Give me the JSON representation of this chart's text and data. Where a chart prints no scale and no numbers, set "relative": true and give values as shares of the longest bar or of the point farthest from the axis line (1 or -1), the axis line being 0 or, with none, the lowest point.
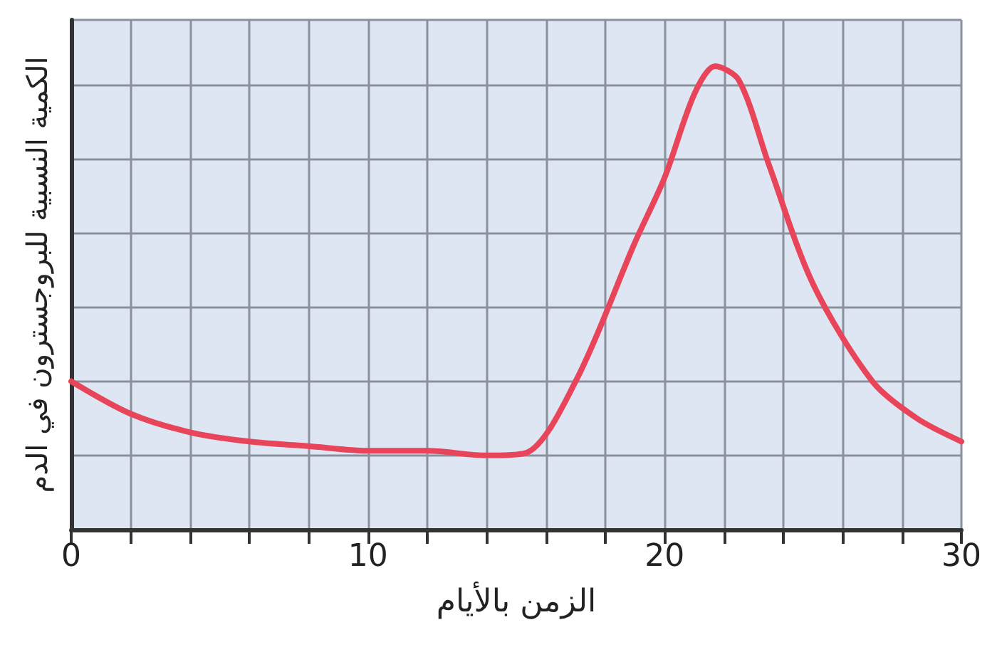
{
  "chart_data": {
    "type": "line",
    "xlabel": "الزمن بالأيام",
    "ylabel": "الكمية النسبية للبروجسترون في الدم",
    "relative": true,
    "xlim": [
      0,
      30
    ],
    "xticks": [
      0,
      {
        "value": 2,
        "label": null
      },
      {
        "value": 4,
        "label": null
      },
      {
        "value": 6,
        "label": null
      },
      {
        "value": 8,
        "label": null
      },
      10,
      {
        "value": 12,
        "label": null
      },
      {
        "value": 14,
        "label": null
      },
      {
        "value": 16,
        "label": null
      },
      {
        "value": 18,
        "label": null
      },
      20,
      {
        "value": 22,
        "label": null
      },
      {
        "value": 24,
        "label": null
      },
      {
        "value": 26,
        "label": null
      },
      {
        "value": 28,
        "label": null
      },
      30
    ],
    "x": [
      0,
      2,
      4,
      6,
      8,
      10,
      11,
      12,
      14,
      15.3,
      17,
      19,
      20,
      21,
      21.7,
      22.5,
      23.5,
      25,
      27,
      28.5,
      30
    ],
    "series": [
      {
        "color": "#e8445a",
        "values": [
          0.32,
          0.25,
          0.21,
          0.19,
          0.18,
          0.17,
          0.17,
          0.17,
          0.16,
          0.165,
          0.32,
          0.62,
          0.76,
          0.94,
          1,
          0.97,
          0.79,
          0.53,
          0.32,
          0.24,
          0.19
        ]
      }
    ],
    "grid": true,
    "tick_labels": "x",
    "marker": "none",
    "line_style": "solid"
  }
}
